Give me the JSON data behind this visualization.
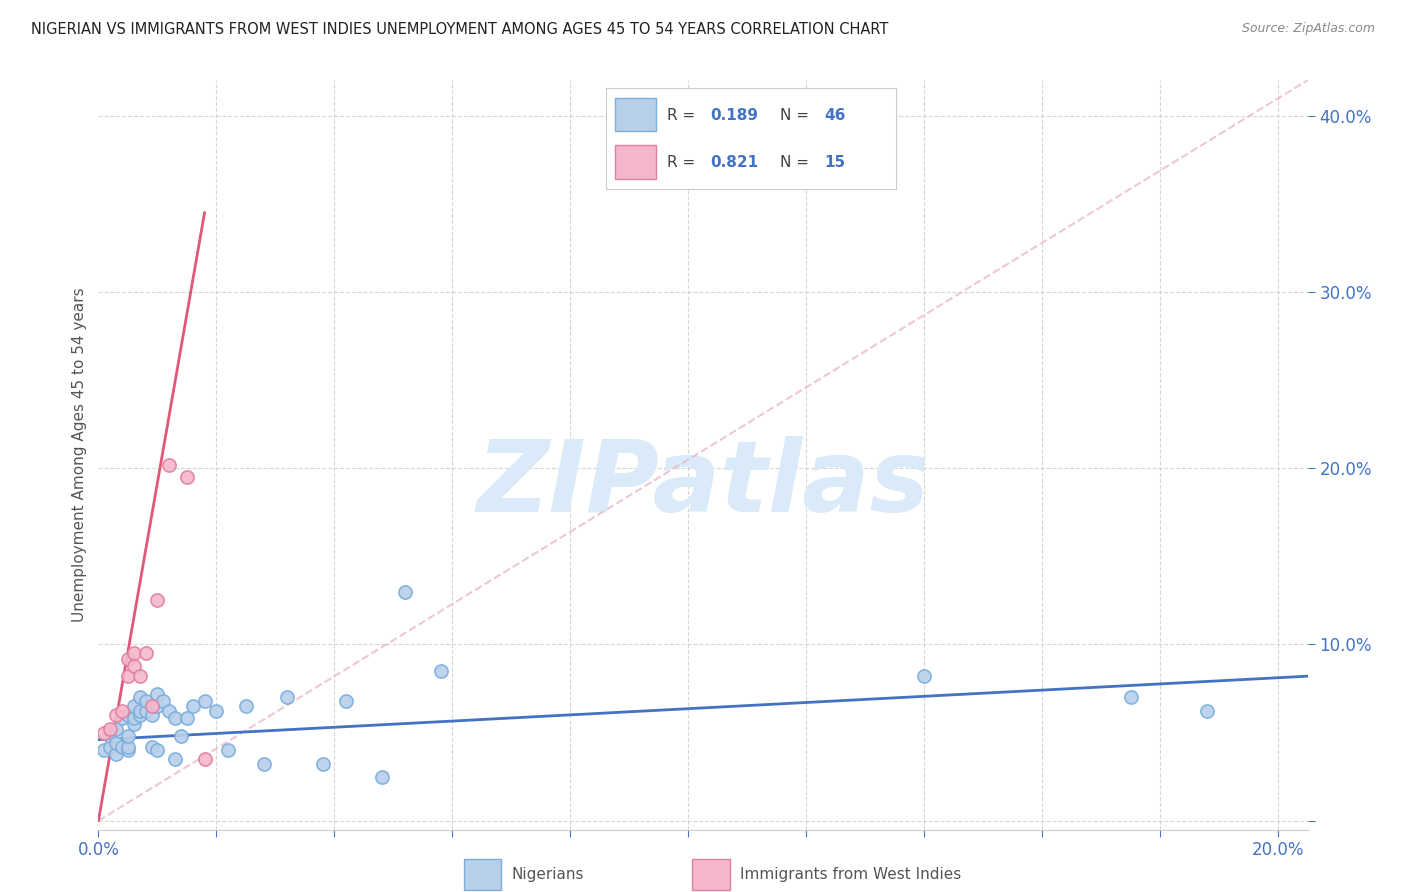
{
  "title": "NIGERIAN VS IMMIGRANTS FROM WEST INDIES UNEMPLOYMENT AMONG AGES 45 TO 54 YEARS CORRELATION CHART",
  "source": "Source: ZipAtlas.com",
  "ylabel": "Unemployment Among Ages 45 to 54 years",
  "xlim": [
    0.0,
    0.205
  ],
  "ylim": [
    -0.005,
    0.42
  ],
  "y_ticks": [
    0.0,
    0.1,
    0.2,
    0.3,
    0.4
  ],
  "x_ticks_show": [
    0.0,
    0.2
  ],
  "legend_nig": {
    "R": "0.189",
    "N": "46",
    "face_color": "#b8d0ea",
    "edge_color": "#7aaedc"
  },
  "legend_wi": {
    "R": "0.821",
    "N": "15",
    "face_color": "#f4b8ca",
    "edge_color": "#e080a0"
  },
  "nig_line_color": "#4472c4",
  "wi_line_color": "#e05878",
  "wi_dash_color": "#e8b0c0",
  "watermark_text": "ZIPatlas",
  "watermark_color": "#daeaf8",
  "title_color": "#222222",
  "source_color": "#888888",
  "tick_color": "#4472c4",
  "ylabel_color": "#555555",
  "grid_color": "#cccccc",
  "background_color": "#ffffff",
  "nigerians_x": [
    0.001,
    0.002,
    0.002,
    0.003,
    0.003,
    0.003,
    0.004,
    0.004,
    0.005,
    0.005,
    0.005,
    0.005,
    0.006,
    0.006,
    0.006,
    0.007,
    0.007,
    0.007,
    0.008,
    0.008,
    0.009,
    0.009,
    0.01,
    0.01,
    0.01,
    0.011,
    0.012,
    0.013,
    0.013,
    0.014,
    0.015,
    0.016,
    0.018,
    0.02,
    0.022,
    0.025,
    0.028,
    0.032,
    0.038,
    0.042,
    0.048,
    0.052,
    0.058,
    0.14,
    0.175,
    0.188
  ],
  "nigerians_y": [
    0.04,
    0.042,
    0.048,
    0.038,
    0.044,
    0.052,
    0.042,
    0.058,
    0.04,
    0.042,
    0.048,
    0.06,
    0.055,
    0.058,
    0.065,
    0.06,
    0.062,
    0.07,
    0.062,
    0.068,
    0.06,
    0.042,
    0.065,
    0.072,
    0.04,
    0.068,
    0.062,
    0.058,
    0.035,
    0.048,
    0.058,
    0.065,
    0.068,
    0.062,
    0.04,
    0.065,
    0.032,
    0.07,
    0.032,
    0.068,
    0.025,
    0.13,
    0.085,
    0.082,
    0.07,
    0.062
  ],
  "west_indies_x": [
    0.001,
    0.002,
    0.003,
    0.004,
    0.005,
    0.005,
    0.006,
    0.006,
    0.007,
    0.008,
    0.009,
    0.01,
    0.012,
    0.015,
    0.018
  ],
  "west_indies_y": [
    0.05,
    0.052,
    0.06,
    0.062,
    0.082,
    0.092,
    0.088,
    0.095,
    0.082,
    0.095,
    0.065,
    0.125,
    0.202,
    0.195,
    0.035
  ],
  "nig_trend": [
    0.0,
    0.205,
    0.046,
    0.082
  ],
  "wi_trend_solid": [
    0.0,
    0.018,
    0.0,
    0.345
  ],
  "wi_trend_dash": [
    0.0,
    0.205,
    0.0,
    0.345
  ]
}
